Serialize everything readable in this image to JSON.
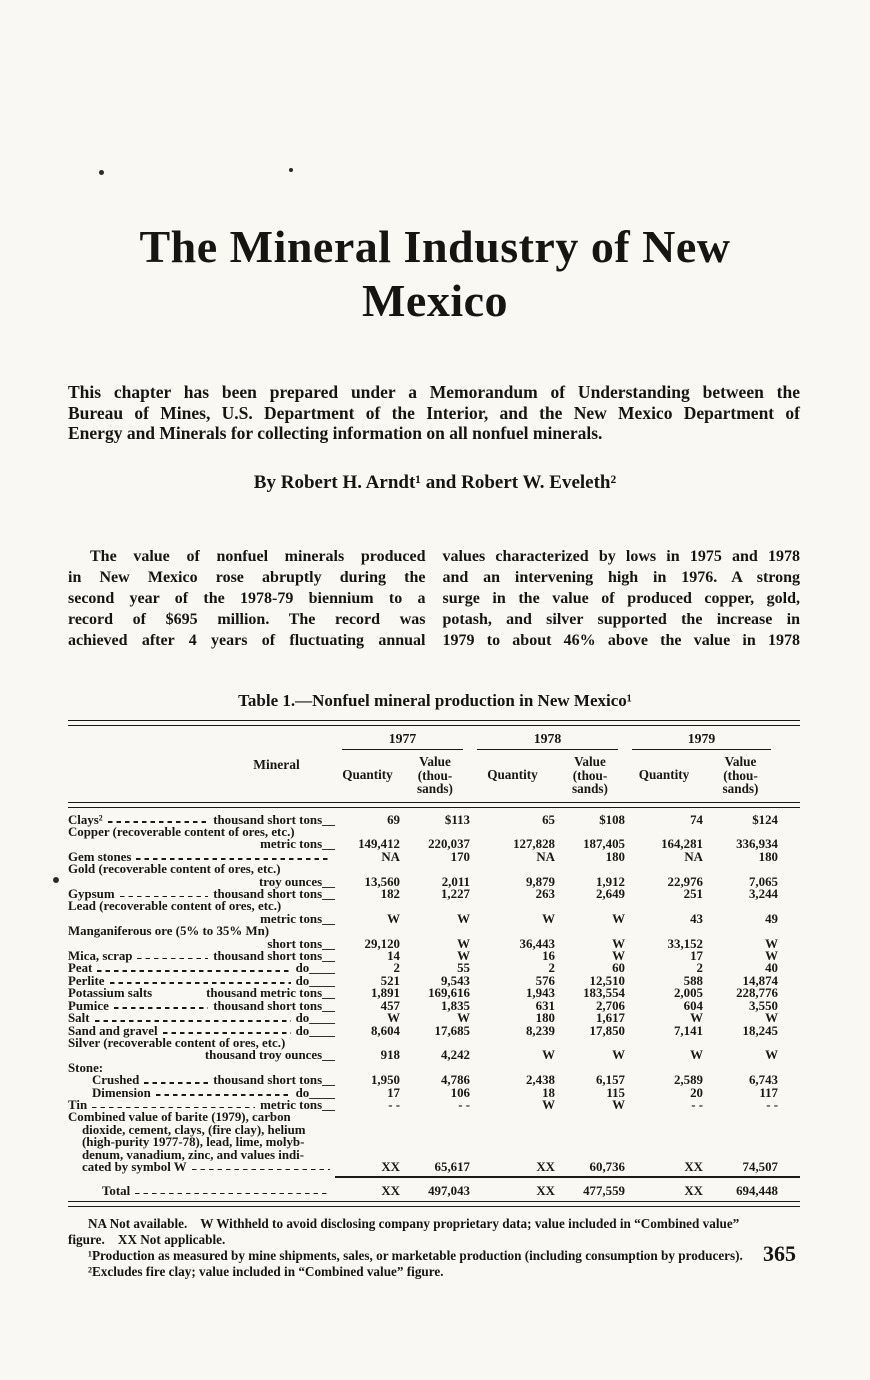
{
  "title": {
    "line1": "The Mineral Industry of New",
    "line2": "Mexico"
  },
  "intro": {
    "lines": [
      "This chapter has been prepared under a Memorandum of Understanding between the",
      "Bureau of Mines, U.S. Department of the Interior, and the New Mexico Department of",
      "Energy and Minerals for collecting information on all nonfuel minerals."
    ]
  },
  "byline": "By Robert H. Arndt¹ and Robert W. Eveleth²",
  "body": {
    "left_lines": [
      "The value of nonfuel minerals produced",
      "in New Mexico rose abruptly during the",
      "second year of the 1978-79 biennium to a",
      "record of $695 million. The record was",
      "achieved after 4 years of fluctuating annual"
    ],
    "right_lines": [
      "values characterized by lows in 1975 and 1978",
      "and an intervening high in 1976. A strong",
      "surge in the value of produced copper, gold,",
      "potash, and silver supported the increase in",
      "1979 to about 46% above the value in 1978"
    ]
  },
  "table": {
    "title": "Table 1.—Nonfuel mineral production in New Mexico¹",
    "mineral_header": "Mineral",
    "years": [
      {
        "year": "1977",
        "quantity_label": "Quantity",
        "value_label": "Value\n(thou-\nsands)"
      },
      {
        "year": "1978",
        "quantity_label": "Quantity",
        "value_label": "Value\n(thou-\nsands)"
      },
      {
        "year": "1979",
        "quantity_label": "Quantity",
        "value_label": "Value\n(thou-\nsands)"
      }
    ],
    "rows": [
      {
        "label": "Clays²",
        "leader": "dash",
        "unit": "thousand short tons__",
        "cells": [
          "69",
          "$113",
          "65",
          "$108",
          "74",
          "$124"
        ]
      },
      {
        "label": "Copper (recoverable content of ores, etc.)",
        "cells": [
          "",
          "",
          "",
          "",
          "",
          ""
        ]
      },
      {
        "unit": "metric tons__",
        "cells": [
          "149,412",
          "220,037",
          "127,828",
          "187,405",
          "164,281",
          "336,934"
        ]
      },
      {
        "label": "Gem stones",
        "leader": "dash",
        "cells": [
          "NA",
          "170",
          "NA",
          "180",
          "NA",
          "180"
        ]
      },
      {
        "label": "Gold (recoverable content of ores, etc.)",
        "cells": [
          "",
          "",
          "",
          "",
          "",
          ""
        ]
      },
      {
        "unit": "troy ounces__",
        "cells": [
          "13,560",
          "2,011",
          "9,879",
          "1,912",
          "22,976",
          "7,065"
        ]
      },
      {
        "label": "Gypsum",
        "leader": "dash",
        "unit": "thousand short tons__",
        "cells": [
          "182",
          "1,227",
          "263",
          "2,649",
          "251",
          "3,244"
        ]
      },
      {
        "label": "Lead (recoverable content of ores, etc.)",
        "cells": [
          "",
          "",
          "",
          "",
          "",
          ""
        ]
      },
      {
        "unit": "metric tons__",
        "cells": [
          "W",
          "W",
          "W",
          "W",
          "43",
          "49"
        ]
      },
      {
        "label": "Manganiferous ore (5% to 35% Mn)",
        "cells": [
          "",
          "",
          "",
          "",
          "",
          ""
        ]
      },
      {
        "unit": "short tons__",
        "cells": [
          "29,120",
          "W",
          "36,443",
          "W",
          "33,152",
          "W"
        ]
      },
      {
        "label": "Mica, scrap",
        "leader": "dash",
        "unit": "thousand short tons__",
        "cells": [
          "14",
          "W",
          "16",
          "W",
          "17",
          "W"
        ]
      },
      {
        "label": "Peat",
        "leader": "dash",
        "unit": "do____",
        "cells": [
          "2",
          "55",
          "2",
          "60",
          "2",
          "40"
        ]
      },
      {
        "label": "Perlite",
        "leader": "dash",
        "unit": "do____",
        "cells": [
          "521",
          "9,543",
          "576",
          "12,510",
          "588",
          "14,874"
        ]
      },
      {
        "label": "Potassium salts",
        "leader": "space",
        "unit": "thousand metric tons__",
        "cells": [
          "1,891",
          "169,616",
          "1,943",
          "183,554",
          "2,005",
          "228,776"
        ]
      },
      {
        "label": "Pumice",
        "leader": "dash",
        "unit": "thousand short tons__",
        "cells": [
          "457",
          "1,835",
          "631",
          "2,706",
          "604",
          "3,550"
        ]
      },
      {
        "label": "Salt",
        "leader": "dash",
        "unit": "do____",
        "cells": [
          "W",
          "W",
          "180",
          "1,617",
          "W",
          "W"
        ]
      },
      {
        "label": "Sand and gravel",
        "leader": "dash",
        "unit": "do____",
        "cells": [
          "8,604",
          "17,685",
          "8,239",
          "17,850",
          "7,141",
          "18,245"
        ]
      },
      {
        "label": "Silver (recoverable content of ores, etc.)",
        "cells": [
          "",
          "",
          "",
          "",
          "",
          ""
        ]
      },
      {
        "unit": "thousand troy ounces__",
        "cells": [
          "918",
          "4,242",
          "W",
          "W",
          "W",
          "W"
        ]
      },
      {
        "label": "Stone:",
        "cells": [
          "",
          "",
          "",
          "",
          "",
          ""
        ]
      },
      {
        "label": "Crushed",
        "indent": 2,
        "leader": "dash",
        "unit": "thousand short tons__",
        "cells": [
          "1,950",
          "4,786",
          "2,438",
          "6,157",
          "2,589",
          "6,743"
        ]
      },
      {
        "label": "Dimension",
        "indent": 2,
        "leader": "dash",
        "unit": "do____",
        "cells": [
          "17",
          "106",
          "18",
          "115",
          "20",
          "117"
        ]
      },
      {
        "label": "Tin",
        "leader": "dash",
        "unit": "metric tons__",
        "cells": [
          "- -",
          "- -",
          "W",
          "W",
          "- -",
          "- -"
        ]
      },
      {
        "label": "Combined value of barite (1979), carbon",
        "cells": [
          "",
          "",
          "",
          "",
          "",
          ""
        ]
      },
      {
        "label": "dioxide, cement, clays, (fire clay), helium",
        "indent": 1,
        "cells": [
          "",
          "",
          "",
          "",
          "",
          ""
        ]
      },
      {
        "label": "(high-purity 1977-78), lead, lime, molyb-",
        "indent": 1,
        "cells": [
          "",
          "",
          "",
          "",
          "",
          ""
        ]
      },
      {
        "label": "denum, vanadium, zinc, and values indi-",
        "indent": 1,
        "cells": [
          "",
          "",
          "",
          "",
          "",
          ""
        ]
      },
      {
        "label": "cated by symbol W",
        "indent": 1,
        "leader": "dash",
        "cells": [
          "XX",
          "65,617",
          "XX",
          "60,736",
          "XX",
          "74,507"
        ]
      },
      {
        "label": "Total",
        "indent": 3,
        "leader": "dash",
        "rule_before": "partial",
        "gap_before": true,
        "cells": [
          "XX",
          "497,043",
          "XX",
          "477,559",
          "XX",
          "694,448"
        ]
      }
    ]
  },
  "footnotes": {
    "legend_line1": "NA Not available.    W Withheld to avoid disclosing company proprietary data; value included in “Combined value”",
    "legend_line2": "figure.    XX Not applicable.",
    "note1": "¹Production as measured by mine shipments, sales, or marketable production (including consumption by producers).",
    "note2": "²Excludes fire clay; value included in “Combined value” figure."
  },
  "page": {
    "number": "365"
  }
}
